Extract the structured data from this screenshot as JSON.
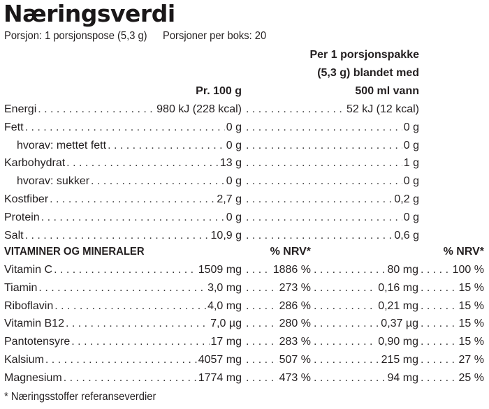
{
  "title": "Næringsverdi",
  "serving": {
    "portion": "Porsjon: 1 porsjonspose (5,3 g)",
    "portions_per_box": "Porsjoner per boks: 20"
  },
  "headers": {
    "per_serving_line1": "Per 1 porsjonspakke",
    "per_serving_line2": "(5,3 g) blandet med",
    "per_serving_line3": "500 ml vann",
    "per_100g": "Pr. 100 g"
  },
  "nutrients": [
    {
      "label": "Energi",
      "per100": "980 kJ (228 kcal)",
      "perServing": "52 kJ (12 kcal)",
      "indent": false
    },
    {
      "label": "Fett",
      "per100": "0 g",
      "perServing": "0 g",
      "indent": false
    },
    {
      "label": "hvorav: mettet fett",
      "per100": "0 g",
      "perServing": "0 g",
      "indent": true
    },
    {
      "label": "Karbohydrat",
      "per100": "13 g",
      "perServing": "1 g",
      "indent": false
    },
    {
      "label": "hvorav: sukker",
      "per100": "0 g",
      "perServing": "0 g",
      "indent": true
    },
    {
      "label": "Kostfiber",
      "per100": "2,7 g",
      "perServing": "0,2 g",
      "indent": false
    },
    {
      "label": "Protein",
      "per100": "0 g",
      "perServing": "0 g",
      "indent": false
    },
    {
      "label": "Salt",
      "per100": "10,9 g",
      "perServing": "0,6 g",
      "indent": false
    }
  ],
  "vitamins_section": {
    "title": "VITAMINER OG MINERALER",
    "nrv_header_1": "% NRV*",
    "nrv_header_2": "% NRV*"
  },
  "vitamins": [
    {
      "label": "Vitamin C",
      "per100": "1509 mg",
      "nrv100": "1886 %",
      "perServing": "80 mg",
      "nrvServing": "100 %"
    },
    {
      "label": "Tiamin",
      "per100": "3,0 mg",
      "nrv100": "273 %",
      "perServing": "0,16 mg",
      "nrvServing": "15 %"
    },
    {
      "label": "Riboflavin",
      "per100": "4,0 mg",
      "nrv100": "286 %",
      "perServing": "0,21 mg",
      "nrvServing": "15 %"
    },
    {
      "label": "Vitamin B12",
      "per100": "7,0 µg",
      "nrv100": "280 %",
      "perServing": "0,37 µg",
      "nrvServing": "15 %"
    },
    {
      "label": "Pantotensyre",
      "per100": "17 mg",
      "nrv100": "283 %",
      "perServing": "0,90 mg",
      "nrvServing": "15 %"
    },
    {
      "label": "Kalsium",
      "per100": "4057 mg",
      "nrv100": "507 %",
      "perServing": "215 mg",
      "nrvServing": "27 %"
    },
    {
      "label": "Magnesium",
      "per100": "1774 mg",
      "nrv100": "473 %",
      "perServing": "94 mg",
      "nrvServing": "25 %"
    }
  ],
  "footnote": "* Næringsstoffer referanseverdier"
}
